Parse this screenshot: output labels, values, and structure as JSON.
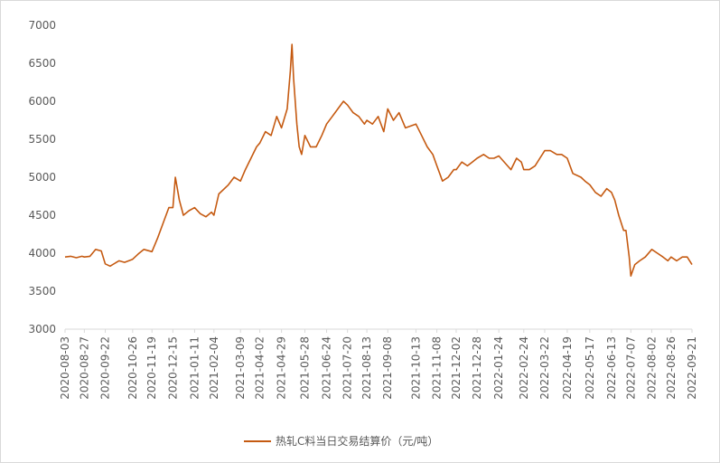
{
  "chart_data": {
    "type": "line",
    "title": "",
    "xlabel": "",
    "ylabel": "",
    "ylim": [
      3000,
      7000
    ],
    "yticks": [
      3000,
      3500,
      4000,
      4500,
      5000,
      5500,
      6000,
      6500,
      7000
    ],
    "xlim": [
      "2020-08-03",
      "2022-09-21"
    ],
    "x_tick_labels": [
      "2020-08-03",
      "2020-08-27",
      "2020-09-22",
      "2020-10-26",
      "2020-11-19",
      "2020-12-15",
      "2021-01-11",
      "2021-02-04",
      "2021-03-09",
      "2021-04-02",
      "2021-04-29",
      "2021-05-28",
      "2021-06-24",
      "2021-07-20",
      "2021-08-13",
      "2021-09-08",
      "2021-10-13",
      "2021-11-08",
      "2021-12-02",
      "2021-12-28",
      "2022-01-24",
      "2022-02-24",
      "2022-03-22",
      "2022-04-19",
      "2022-05-17",
      "2022-06-13",
      "2022-07-07",
      "2022-08-02",
      "2022-08-26",
      "2022-09-21"
    ],
    "grid": false,
    "legend_position": "bottom",
    "series": [
      {
        "name": "热轧C料当日交易结算价（元/吨）",
        "color": "#c55a11",
        "x": [
          "2020-08-03",
          "2020-08-10",
          "2020-08-17",
          "2020-08-24",
          "2020-08-27",
          "2020-09-03",
          "2020-09-10",
          "2020-09-17",
          "2020-09-22",
          "2020-09-28",
          "2020-10-09",
          "2020-10-16",
          "2020-10-26",
          "2020-11-02",
          "2020-11-09",
          "2020-11-19",
          "2020-11-26",
          "2020-12-03",
          "2020-12-10",
          "2020-12-15",
          "2020-12-18",
          "2020-12-23",
          "2020-12-28",
          "2021-01-04",
          "2021-01-11",
          "2021-01-18",
          "2021-01-25",
          "2021-02-01",
          "2021-02-04",
          "2021-02-10",
          "2021-02-22",
          "2021-03-01",
          "2021-03-09",
          "2021-03-15",
          "2021-03-22",
          "2021-03-29",
          "2021-04-02",
          "2021-04-09",
          "2021-04-16",
          "2021-04-23",
          "2021-04-29",
          "2021-05-06",
          "2021-05-10",
          "2021-05-12",
          "2021-05-14",
          "2021-05-18",
          "2021-05-21",
          "2021-05-24",
          "2021-05-28",
          "2021-06-04",
          "2021-06-11",
          "2021-06-18",
          "2021-06-24",
          "2021-07-01",
          "2021-07-08",
          "2021-07-15",
          "2021-07-20",
          "2021-07-27",
          "2021-08-03",
          "2021-08-10",
          "2021-08-13",
          "2021-08-20",
          "2021-08-27",
          "2021-09-03",
          "2021-09-08",
          "2021-09-15",
          "2021-09-22",
          "2021-09-30",
          "2021-10-13",
          "2021-10-20",
          "2021-10-27",
          "2021-11-03",
          "2021-11-08",
          "2021-11-15",
          "2021-11-22",
          "2021-11-29",
          "2021-12-02",
          "2021-12-09",
          "2021-12-16",
          "2021-12-22",
          "2021-12-28",
          "2022-01-05",
          "2022-01-12",
          "2022-01-18",
          "2022-01-24",
          "2022-02-08",
          "2022-02-15",
          "2022-02-21",
          "2022-02-24",
          "2022-03-03",
          "2022-03-10",
          "2022-03-16",
          "2022-03-22",
          "2022-03-29",
          "2022-04-06",
          "2022-04-12",
          "2022-04-19",
          "2022-04-26",
          "2022-05-06",
          "2022-05-11",
          "2022-05-17",
          "2022-05-24",
          "2022-05-31",
          "2022-06-07",
          "2022-06-13",
          "2022-06-17",
          "2022-06-22",
          "2022-06-28",
          "2022-07-01",
          "2022-07-05",
          "2022-07-07",
          "2022-07-12",
          "2022-07-18",
          "2022-07-25",
          "2022-08-02",
          "2022-08-09",
          "2022-08-16",
          "2022-08-22",
          "2022-08-26",
          "2022-09-02",
          "2022-09-09",
          "2022-09-15",
          "2022-09-21"
        ],
        "y": [
          3950,
          3960,
          3940,
          3960,
          3950,
          3960,
          4050,
          4030,
          3860,
          3830,
          3900,
          3880,
          3920,
          3990,
          4050,
          4020,
          4200,
          4400,
          4600,
          4600,
          5000,
          4700,
          4500,
          4560,
          4600,
          4520,
          4480,
          4540,
          4500,
          4780,
          4900,
          5000,
          4950,
          5100,
          5250,
          5400,
          5450,
          5600,
          5550,
          5800,
          5650,
          5900,
          6400,
          6750,
          6300,
          5700,
          5400,
          5300,
          5550,
          5400,
          5400,
          5550,
          5700,
          5800,
          5900,
          6000,
          5950,
          5850,
          5800,
          5700,
          5750,
          5700,
          5800,
          5600,
          5900,
          5750,
          5850,
          5650,
          5700,
          5550,
          5400,
          5300,
          5150,
          4950,
          5000,
          5100,
          5100,
          5200,
          5150,
          5200,
          5250,
          5300,
          5250,
          5250,
          5280,
          5100,
          5250,
          5200,
          5100,
          5100,
          5150,
          5250,
          5350,
          5350,
          5300,
          5300,
          5250,
          5050,
          5000,
          4950,
          4900,
          4800,
          4750,
          4850,
          4800,
          4700,
          4500,
          4300,
          4300,
          3950,
          3700,
          3850,
          3900,
          3950,
          4050,
          4000,
          3950,
          3900,
          3950,
          3900,
          3950,
          3950,
          3850
        ]
      }
    ]
  }
}
